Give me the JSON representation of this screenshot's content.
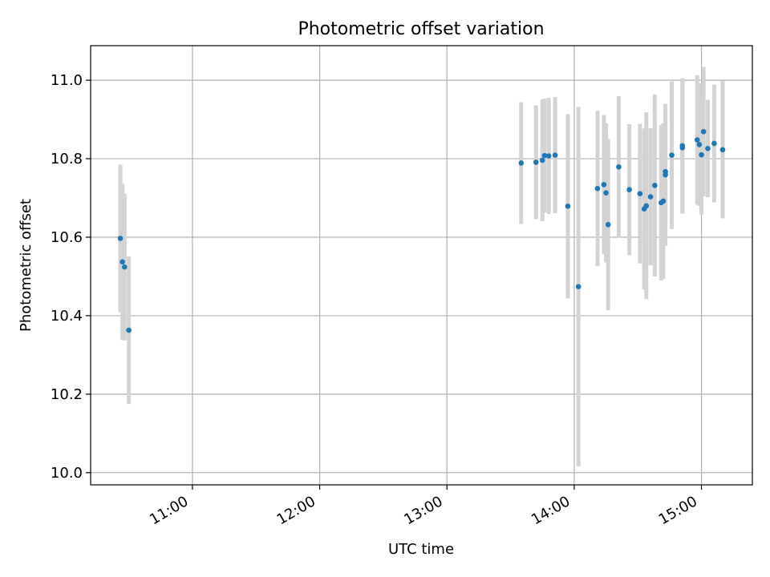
{
  "chart_data": {
    "type": "scatter",
    "title": "Photometric offset variation",
    "xlabel": "UTC time",
    "ylabel": "Photometric offset",
    "x_ticks": [
      "11:00",
      "12:00",
      "13:00",
      "14:00",
      "15:00"
    ],
    "y_ticks": [
      "10.0",
      "10.2",
      "10.4",
      "10.6",
      "10.8",
      "11.0"
    ],
    "y_tick_values": [
      10.0,
      10.2,
      10.4,
      10.6,
      10.8,
      11.0
    ],
    "x_range": [
      "10:12",
      "15:24"
    ],
    "y_range": [
      9.969,
      11.088
    ],
    "grid": true,
    "colors": {
      "points": "#1f77b4",
      "error_bars": "#d3d3d3",
      "grid": "#b0b0b0"
    },
    "series": [
      {
        "points": [
          {
            "t": "10:26",
            "y": 10.597,
            "err": 0.188
          },
          {
            "t": "10:27",
            "y": 10.537,
            "err": 0.199
          },
          {
            "t": "10:28",
            "y": 10.524,
            "err": 0.187
          },
          {
            "t": "10:30",
            "y": 10.363,
            "err": 0.188
          },
          {
            "t": "13:35",
            "y": 10.789,
            "err": 0.155
          },
          {
            "t": "13:42",
            "y": 10.791,
            "err": 0.145
          },
          {
            "t": "13:45",
            "y": 10.796,
            "err": 0.155
          },
          {
            "t": "13:46",
            "y": 10.808,
            "err": 0.145
          },
          {
            "t": "13:48",
            "y": 10.807,
            "err": 0.148
          },
          {
            "t": "13:51",
            "y": 10.809,
            "err": 0.148
          },
          {
            "t": "13:57",
            "y": 10.679,
            "err": 0.235
          },
          {
            "t": "14:02",
            "y": 10.474,
            "err": 0.458
          },
          {
            "t": "14:11",
            "y": 10.724,
            "err": 0.198
          },
          {
            "t": "14:14",
            "y": 10.734,
            "err": 0.177
          },
          {
            "t": "14:15",
            "y": 10.713,
            "err": 0.177
          },
          {
            "t": "14:16",
            "y": 10.632,
            "err": 0.218
          },
          {
            "t": "14:21",
            "y": 10.779,
            "err": 0.18
          },
          {
            "t": "14:26",
            "y": 10.721,
            "err": 0.167
          },
          {
            "t": "14:31",
            "y": 10.711,
            "err": 0.178
          },
          {
            "t": "14:33",
            "y": 10.672,
            "err": 0.205
          },
          {
            "t": "14:34",
            "y": 10.68,
            "err": 0.238
          },
          {
            "t": "14:36",
            "y": 10.703,
            "err": 0.175
          },
          {
            "t": "14:38",
            "y": 10.732,
            "err": 0.232
          },
          {
            "t": "14:41",
            "y": 10.688,
            "err": 0.198
          },
          {
            "t": "14:42",
            "y": 10.692,
            "err": 0.198
          },
          {
            "t": "14:43",
            "y": 10.767,
            "err": 0.125
          },
          {
            "t": "14:43",
            "y": 10.759,
            "err": 0.181
          },
          {
            "t": "14:46",
            "y": 10.809,
            "err": 0.188
          },
          {
            "t": "14:51",
            "y": 10.828,
            "err": 0.168
          },
          {
            "t": "14:51",
            "y": 10.833,
            "err": 0.172
          },
          {
            "t": "14:58",
            "y": 10.848,
            "err": 0.165
          },
          {
            "t": "14:59",
            "y": 10.836,
            "err": 0.156
          },
          {
            "t": "15:00",
            "y": 10.81,
            "err": 0.152
          },
          {
            "t": "15:01",
            "y": 10.869,
            "err": 0.165
          },
          {
            "t": "15:03",
            "y": 10.826,
            "err": 0.124
          },
          {
            "t": "15:06",
            "y": 10.839,
            "err": 0.15
          },
          {
            "t": "15:10",
            "y": 10.823,
            "err": 0.175
          }
        ]
      }
    ]
  }
}
